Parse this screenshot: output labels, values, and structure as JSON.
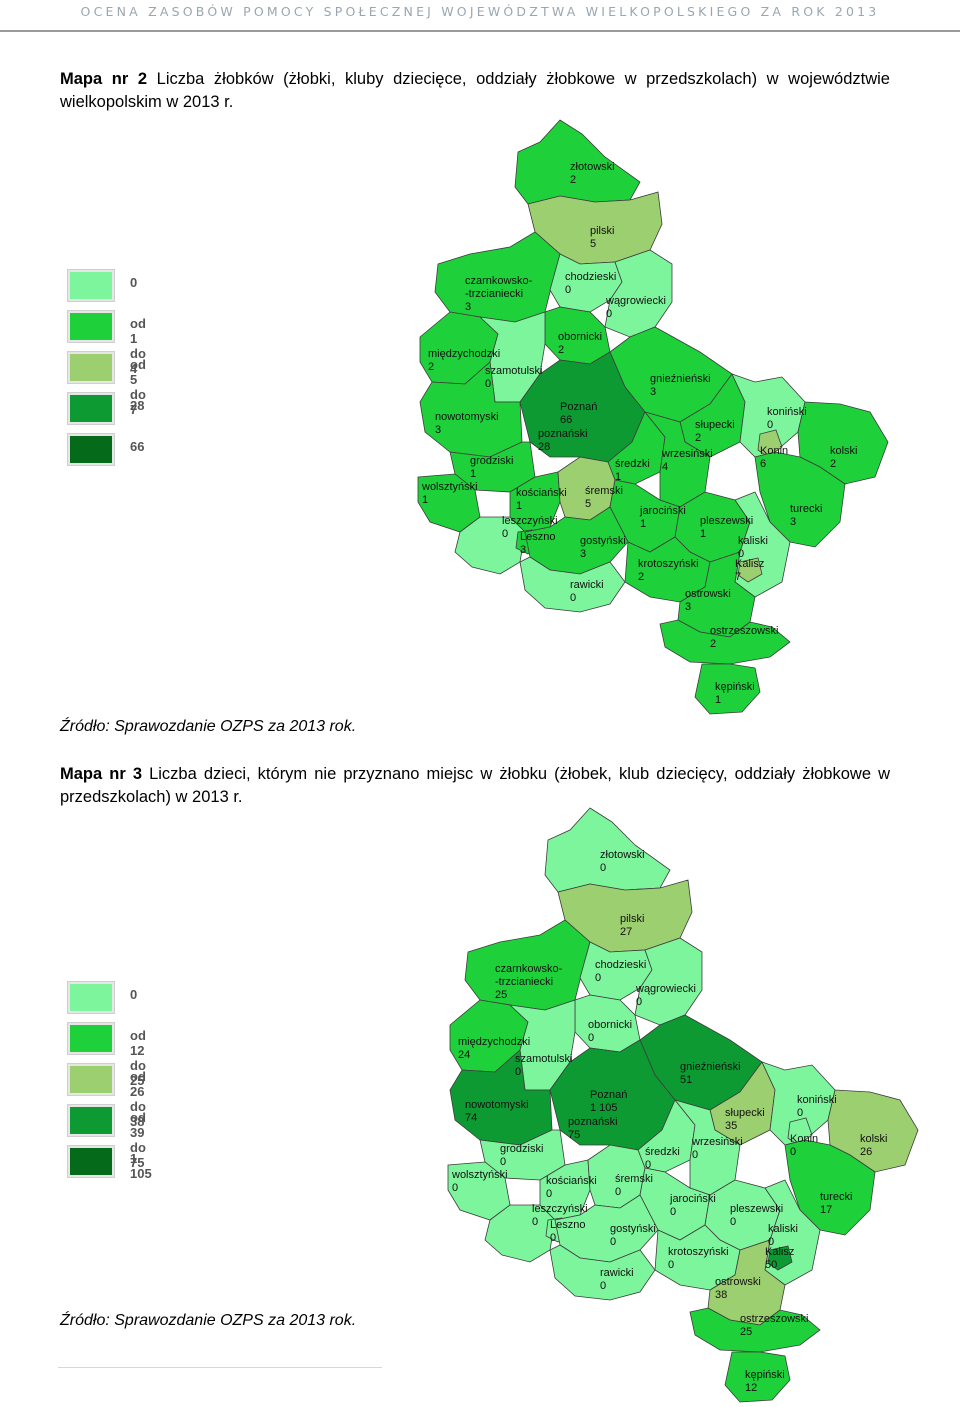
{
  "header": "OCENA ZASOBÓW POMOCY SPOŁECZNEJ WOJEWÓDZTWA WIELKOPOLSKIEGO ZA ROK 2013",
  "colors": {
    "c0": "#7df59c",
    "c1": "#1ed13a",
    "c2": "#9ccf70",
    "c3": "#0e9a33",
    "c4": "#056b1a"
  },
  "map2": {
    "caption_bold": "Mapa nr 2",
    "caption_text": " Liczba żłobków (żłobki, kluby dziecięce, oddziały żłobkowe w przedszkolach) w województwie wielkopolskim w 2013 r.",
    "source": "Źródło: Sprawozdanie OZPS za 2013 rok.",
    "legend": [
      {
        "label": "0",
        "color": "#7df59c"
      },
      {
        "label": "od 1 do 4",
        "color": "#1ed13a"
      },
      {
        "label": "od 5 do 7",
        "color": "#9ccf70"
      },
      {
        "label": "28",
        "color": "#0e9a33"
      },
      {
        "label": "66",
        "color": "#056b1a"
      }
    ],
    "values": {
      "zlotowski": "2",
      "pilski": "5",
      "czarnkowsko": "3",
      "chodzieski": "0",
      "wagrowiecki": "0",
      "obornicki": "2",
      "miedzychodzki": "2",
      "szamotulski": "0",
      "gnieznienski": "3",
      "nowotomyski": "3",
      "poznan": "66",
      "poznanski": "28",
      "slupecki": "2",
      "koninski": "0",
      "konin": "6",
      "kolski": "2",
      "grodziski": "1",
      "sredzki": "1",
      "wrzesinski": "4",
      "wolsztynski": "1",
      "koscianski": "1",
      "sremski": "5",
      "jarocinski": "1",
      "pleszewski": "1",
      "turecki": "3",
      "kaliski": "0",
      "leszczynski": "0",
      "leszno": "3",
      "gostynski": "3",
      "kalisz": "7",
      "krotoszynski": "2",
      "rawicki": "0",
      "ostrowski": "3",
      "ostrzeszowski": "2",
      "kepinski": "1"
    }
  },
  "map3": {
    "caption_bold": "Mapa nr 3",
    "caption_text": " Liczba dzieci, którym nie przyznano miejsc w żłobku (żłobek, klub dziecięcy, oddziały żłobkowe w przedszkolach) w 2013 r.",
    "source": "Źródło: Sprawozdanie OZPS za 2013 rok.",
    "legend": [
      {
        "label": "0",
        "color": "#7df59c"
      },
      {
        "label": "od 12 do 25",
        "color": "#1ed13a"
      },
      {
        "label": "od 26 do 38",
        "color": "#9ccf70"
      },
      {
        "label": "od 39 do 75",
        "color": "#0e9a33"
      },
      {
        "label": "1 105",
        "color": "#056b1a"
      }
    ],
    "values": {
      "zlotowski": "0",
      "pilski": "27",
      "czarnkowsko": "25",
      "chodzieski": "0",
      "wagrowiecki": "0",
      "obornicki": "0",
      "miedzychodzki": "24",
      "szamotulski": "0",
      "gnieznienski": "51",
      "nowotomyski": "74",
      "poznan": "1 105",
      "poznanski": "75",
      "slupecki": "35",
      "koninski": "0",
      "konin": "0",
      "kolski": "26",
      "grodziski": "0",
      "sredzki": "0",
      "wrzesinski": "0",
      "wolsztynski": "0",
      "koscianski": "0",
      "sremski": "0",
      "jarocinski": "0",
      "pleszewski": "0",
      "turecki": "17",
      "kaliski": "0",
      "leszczynski": "0",
      "leszno": "0",
      "gostynski": "0",
      "kalisz": "50",
      "krotoszynski": "0",
      "rawicki": "0",
      "ostrowski": "38",
      "ostrzeszowski": "25",
      "kepinski": "12"
    }
  },
  "names": {
    "zlotowski": "złotowski",
    "pilski": "pilski",
    "czarnkowsko_1": "czarnkowsko-",
    "czarnkowsko_2": "-trzcianiecki",
    "chodzieski": "chodzieski",
    "wagrowiecki": "wągrowiecki",
    "obornicki": "obornicki",
    "miedzychodzki": "międzychodzki",
    "szamotulski": "szamotulski",
    "gnieznienski": "gnieźnieński",
    "nowotomyski": "nowotomyski",
    "poznan": "Poznań",
    "poznanski": "poznański",
    "slupecki": "słupecki",
    "koninski": "koniński",
    "konin": "Konin",
    "kolski": "kolski",
    "grodziski": "grodziski",
    "sredzki": "średzki",
    "wrzesinski": "wrzesiński",
    "wolsztynski": "wolsztyński",
    "koscianski": "kościański",
    "sremski": "śremski",
    "jarocinski": "jarociński",
    "pleszewski": "pleszewski",
    "turecki": "turecki",
    "kaliski": "kaliski",
    "leszczynski": "leszczyński",
    "leszno": "Leszno",
    "gostynski": "gostyński",
    "kalisz": "Kalisz",
    "krotoszynski": "krotoszyński",
    "rawicki": "rawicki",
    "ostrowski": "ostrowski",
    "ostrzeszowski": "ostrzeszowski",
    "kepinski": "kępiński"
  }
}
